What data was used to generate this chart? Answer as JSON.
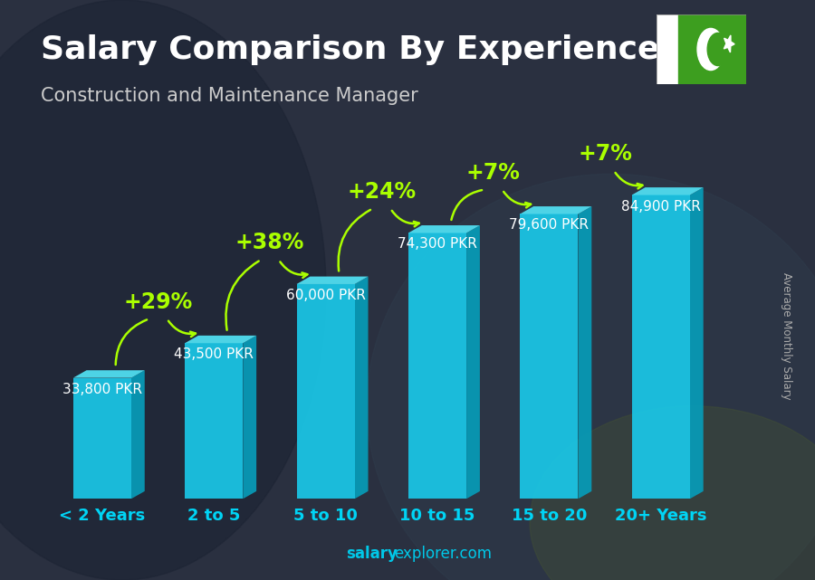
{
  "title": "Salary Comparison By Experience",
  "subtitle": "Construction and Maintenance Manager",
  "ylabel": "Average Monthly Salary",
  "xlabel_labels": [
    "< 2 Years",
    "2 to 5",
    "5 to 10",
    "10 to 15",
    "15 to 20",
    "20+ Years"
  ],
  "values": [
    33800,
    43500,
    60000,
    74300,
    79600,
    84900
  ],
  "value_labels": [
    "33,800 PKR",
    "43,500 PKR",
    "60,000 PKR",
    "74,300 PKR",
    "79,600 PKR",
    "84,900 PKR"
  ],
  "pct_changes": [
    "+29%",
    "+38%",
    "+24%",
    "+7%",
    "+7%"
  ],
  "bar_color_front": "#1ac8e8",
  "bar_color_top": "#50ddf0",
  "bar_color_side": "#0899b5",
  "bg_dark": "#2a3040",
  "bg_mid": "#3a4558",
  "title_color": "#ffffff",
  "subtitle_color": "#cccccc",
  "label_color": "#ffffff",
  "pct_color": "#aaff00",
  "tick_color": "#00d4f5",
  "watermark_salary": "salary",
  "watermark_rest": "explorer.com",
  "watermark_color": "#00c8e8",
  "flag_green": "#3d9e1f",
  "title_fontsize": 26,
  "subtitle_fontsize": 15,
  "value_label_fontsize": 11,
  "pct_fontsize": 17,
  "tick_fontsize": 13
}
